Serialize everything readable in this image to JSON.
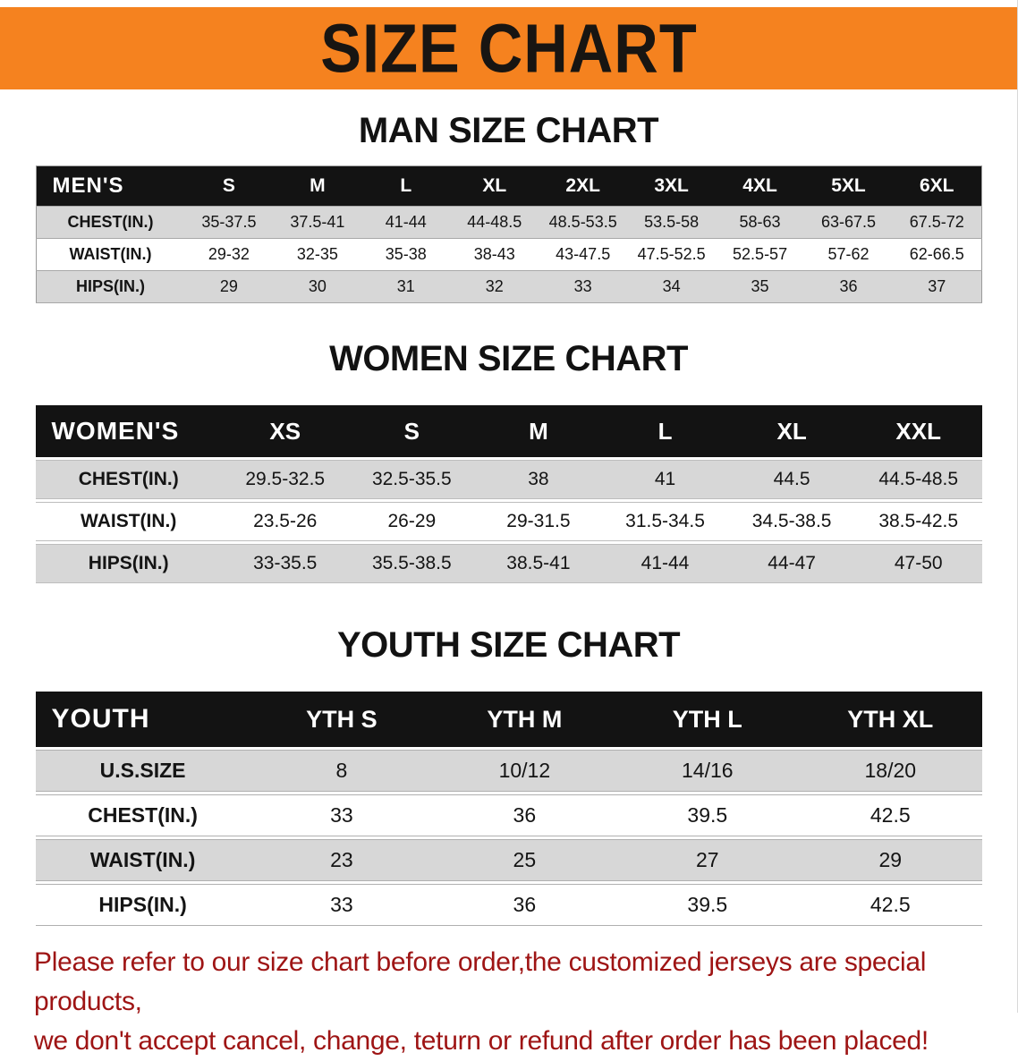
{
  "banner": {
    "title": "SIZE CHART"
  },
  "tables": [
    {
      "name": "men",
      "title": "MAN SIZE CHART",
      "header": [
        "MEN'S",
        "S",
        "M",
        "L",
        "XL",
        "2XL",
        "3XL",
        "4XL",
        "5XL",
        "6XL"
      ],
      "rows": [
        [
          "CHEST(IN.)",
          "35-37.5",
          "37.5-41",
          "41-44",
          "44-48.5",
          "48.5-53.5",
          "53.5-58",
          "58-63",
          "63-67.5",
          "67.5-72"
        ],
        [
          "WAIST(IN.)",
          "29-32",
          "32-35",
          "35-38",
          "38-43",
          "43-47.5",
          "47.5-52.5",
          "52.5-57",
          "57-62",
          "62-66.5"
        ],
        [
          "HIPS(IN.)",
          "29",
          "30",
          "31",
          "32",
          "33",
          "34",
          "35",
          "36",
          "37"
        ]
      ]
    },
    {
      "name": "women",
      "title": "WOMEN SIZE CHART",
      "header": [
        "WOMEN'S",
        "XS",
        "S",
        "M",
        "L",
        "XL",
        "XXL"
      ],
      "rows": [
        [
          "CHEST(IN.)",
          "29.5-32.5",
          "32.5-35.5",
          "38",
          "41",
          "44.5",
          "44.5-48.5"
        ],
        [
          "WAIST(IN.)",
          "23.5-26",
          "26-29",
          "29-31.5",
          "31.5-34.5",
          "34.5-38.5",
          "38.5-42.5"
        ],
        [
          "HIPS(IN.)",
          "33-35.5",
          "35.5-38.5",
          "38.5-41",
          "41-44",
          "44-47",
          "47-50"
        ]
      ]
    },
    {
      "name": "youth",
      "title": "YOUTH SIZE CHART",
      "header": [
        "YOUTH",
        "YTH S",
        "YTH M",
        "YTH L",
        "YTH XL"
      ],
      "rows": [
        [
          "U.S.SIZE",
          "8",
          "10/12",
          "14/16",
          "18/20"
        ],
        [
          "CHEST(IN.)",
          "33",
          "36",
          "39.5",
          "42.5"
        ],
        [
          "WAIST(IN.)",
          "23",
          "25",
          "27",
          "29"
        ],
        [
          "HIPS(IN.)",
          "33",
          "36",
          "39.5",
          "42.5"
        ]
      ]
    }
  ],
  "footer": {
    "line1": "Please refer to our size chart before order,the customized jerseys are special products,",
    "line2": "we don't accept cancel, change, teturn or refund after order has been placed!"
  },
  "colors": {
    "banner_orange": "#f5821f",
    "header_black": "#131313",
    "row_gray": "#d7d7d7",
    "footer_red": "#9e1414"
  }
}
